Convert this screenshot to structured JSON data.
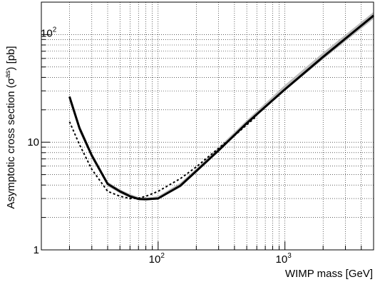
{
  "chart_data": {
    "type": "line",
    "x_scale": "log",
    "y_scale": "log",
    "xlabel": "WIMP mass [GeV]",
    "ylabel": {
      "main": "Asymptotic cross section (σ",
      "superscript": "as",
      "tail": ") [pb]"
    },
    "xlim": [
      12,
      5000
    ],
    "ylim": [
      1,
      200
    ],
    "grid": true,
    "x_ticks": [
      {
        "base": "10",
        "exp": "2",
        "value": 100
      },
      {
        "base": "10",
        "exp": "3",
        "value": 1000
      }
    ],
    "y_ticks": [
      {
        "label": "1",
        "value": 1
      },
      {
        "label": "10",
        "value": 10
      }
    ],
    "y_ticks_exp": [
      {
        "base": "10",
        "exp": "2",
        "value": 100
      }
    ],
    "series": [
      {
        "style": "band",
        "color": "#bdbdbd",
        "x": [
          20,
          24,
          30,
          40,
          50,
          60,
          70,
          80,
          100,
          150,
          200,
          300,
          500,
          1000,
          2000,
          5000
        ],
        "y_low": [
          24,
          12.5,
          7.1,
          3.9,
          3.35,
          3.05,
          2.9,
          2.88,
          2.95,
          3.8,
          5.2,
          8.2,
          14.5,
          30,
          59,
          140
        ],
        "y_high": [
          28,
          14.5,
          8.0,
          4.3,
          3.65,
          3.3,
          3.1,
          3.05,
          3.15,
          4.2,
          5.7,
          9.0,
          16,
          34,
          68,
          162
        ]
      },
      {
        "style": "solid",
        "color": "#000000",
        "x": [
          20,
          24,
          30,
          40,
          50,
          60,
          70,
          80,
          100,
          150,
          200,
          300,
          500,
          1000,
          2000,
          5000
        ],
        "y": [
          26.5,
          13.5,
          7.5,
          4.1,
          3.5,
          3.15,
          2.97,
          2.95,
          3.0,
          3.95,
          5.4,
          8.4,
          15,
          31,
          62,
          150
        ]
      },
      {
        "style": "dashed",
        "color": "#000000",
        "x": [
          20,
          24,
          30,
          40,
          50,
          60,
          70,
          80,
          100,
          150,
          200,
          300,
          400,
          600
        ],
        "y": [
          15.5,
          9.5,
          5.6,
          3.5,
          3.15,
          3.0,
          3.02,
          3.15,
          3.5,
          4.6,
          5.9,
          8.8,
          11.5,
          17.5
        ]
      }
    ]
  }
}
